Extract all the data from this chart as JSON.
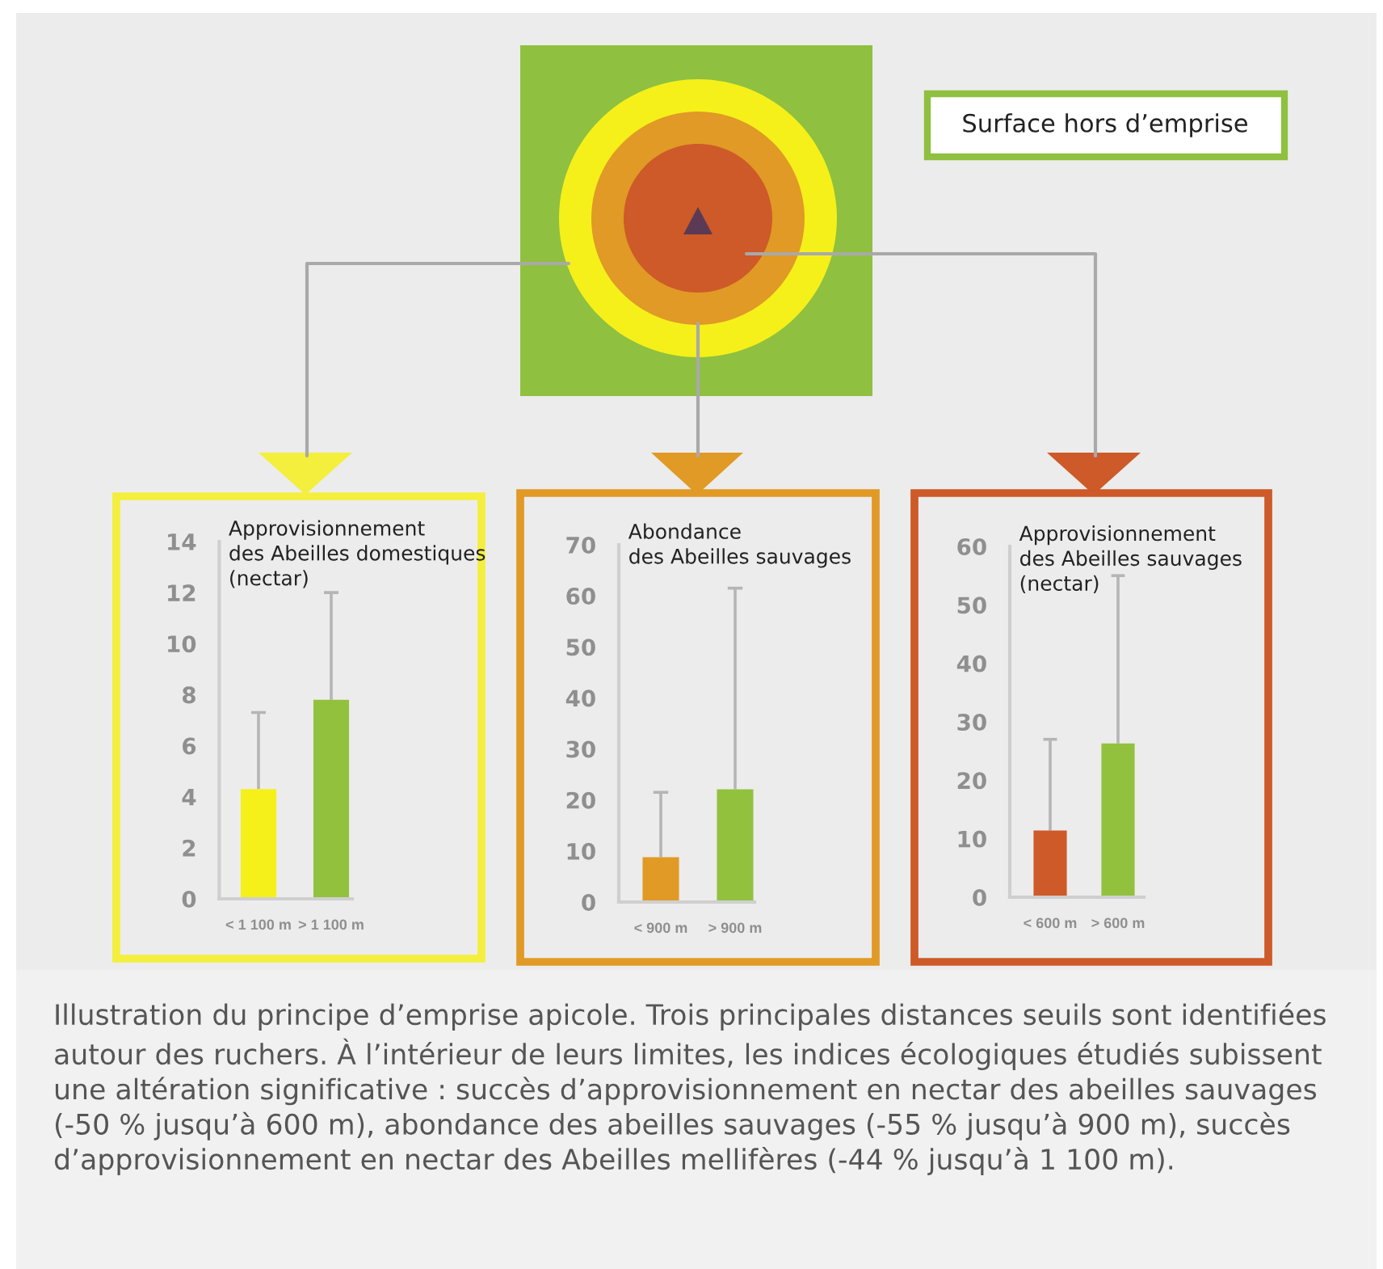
{
  "chart_data": [
    {
      "type": "bar",
      "title": "Approvisionnement\ndes Abeilles domestiques\n(nectar)",
      "categories": [
        "< 1 100 m",
        "> 1 100 m"
      ],
      "values": [
        4.3,
        7.8
      ],
      "colors": [
        "#f5f01a",
        "#92c13e"
      ],
      "errors": [
        [
          4.3,
          7.3
        ],
        [
          7.8,
          12.0
        ]
      ],
      "ylim": [
        0,
        14
      ],
      "yticks": [
        0,
        2,
        4,
        6,
        8,
        10,
        12,
        14
      ],
      "grid": false
    },
    {
      "type": "bar",
      "title": "Abondance\ndes Abeilles sauvages",
      "categories": [
        "< 900 m",
        "> 900 m"
      ],
      "values": [
        8.8,
        22.1
      ],
      "colors": [
        "#e09a25",
        "#92c13e"
      ],
      "errors": [
        [
          8.8,
          21.5
        ],
        [
          22.1,
          61.5
        ]
      ],
      "ylim": [
        0,
        70
      ],
      "yticks": [
        0,
        10,
        20,
        30,
        40,
        50,
        60,
        70
      ],
      "grid": false
    },
    {
      "type": "bar",
      "title": "Approvisionnement\ndes Abeilles sauvages\n(nectar)",
      "categories": [
        "< 600 m",
        "> 600 m"
      ],
      "values": [
        11.4,
        26.3
      ],
      "colors": [
        "#cd5a28",
        "#92c13e"
      ],
      "errors": [
        [
          11.4,
          27.0
        ],
        [
          26.3,
          55.0
        ]
      ],
      "ylim": [
        0,
        60
      ],
      "yticks": [
        0,
        10,
        20,
        30,
        40,
        50,
        60
      ],
      "grid": false
    },
    {
      "type": "other",
      "annotations": [
        "Surface hors d’emprise",
        "Illustration du principe d’emprise apicole. Trois principales distances seuils sont identifiées autour des ruchers. À l’intérieur de leurs limites, les indices écologiques étudiés subissent une altération significative : succès d’approvisionnement en nectar des abeilles sauvages (-50 % jusqu’à 600 m), abondance des abeilles sauvages (-55 % jusqu’à 900 m), succès d’approvisionnement en nectar des Abeilles mellifères (-44 % jusqu’à 1 100 m)."
      ]
    }
  ]
}
